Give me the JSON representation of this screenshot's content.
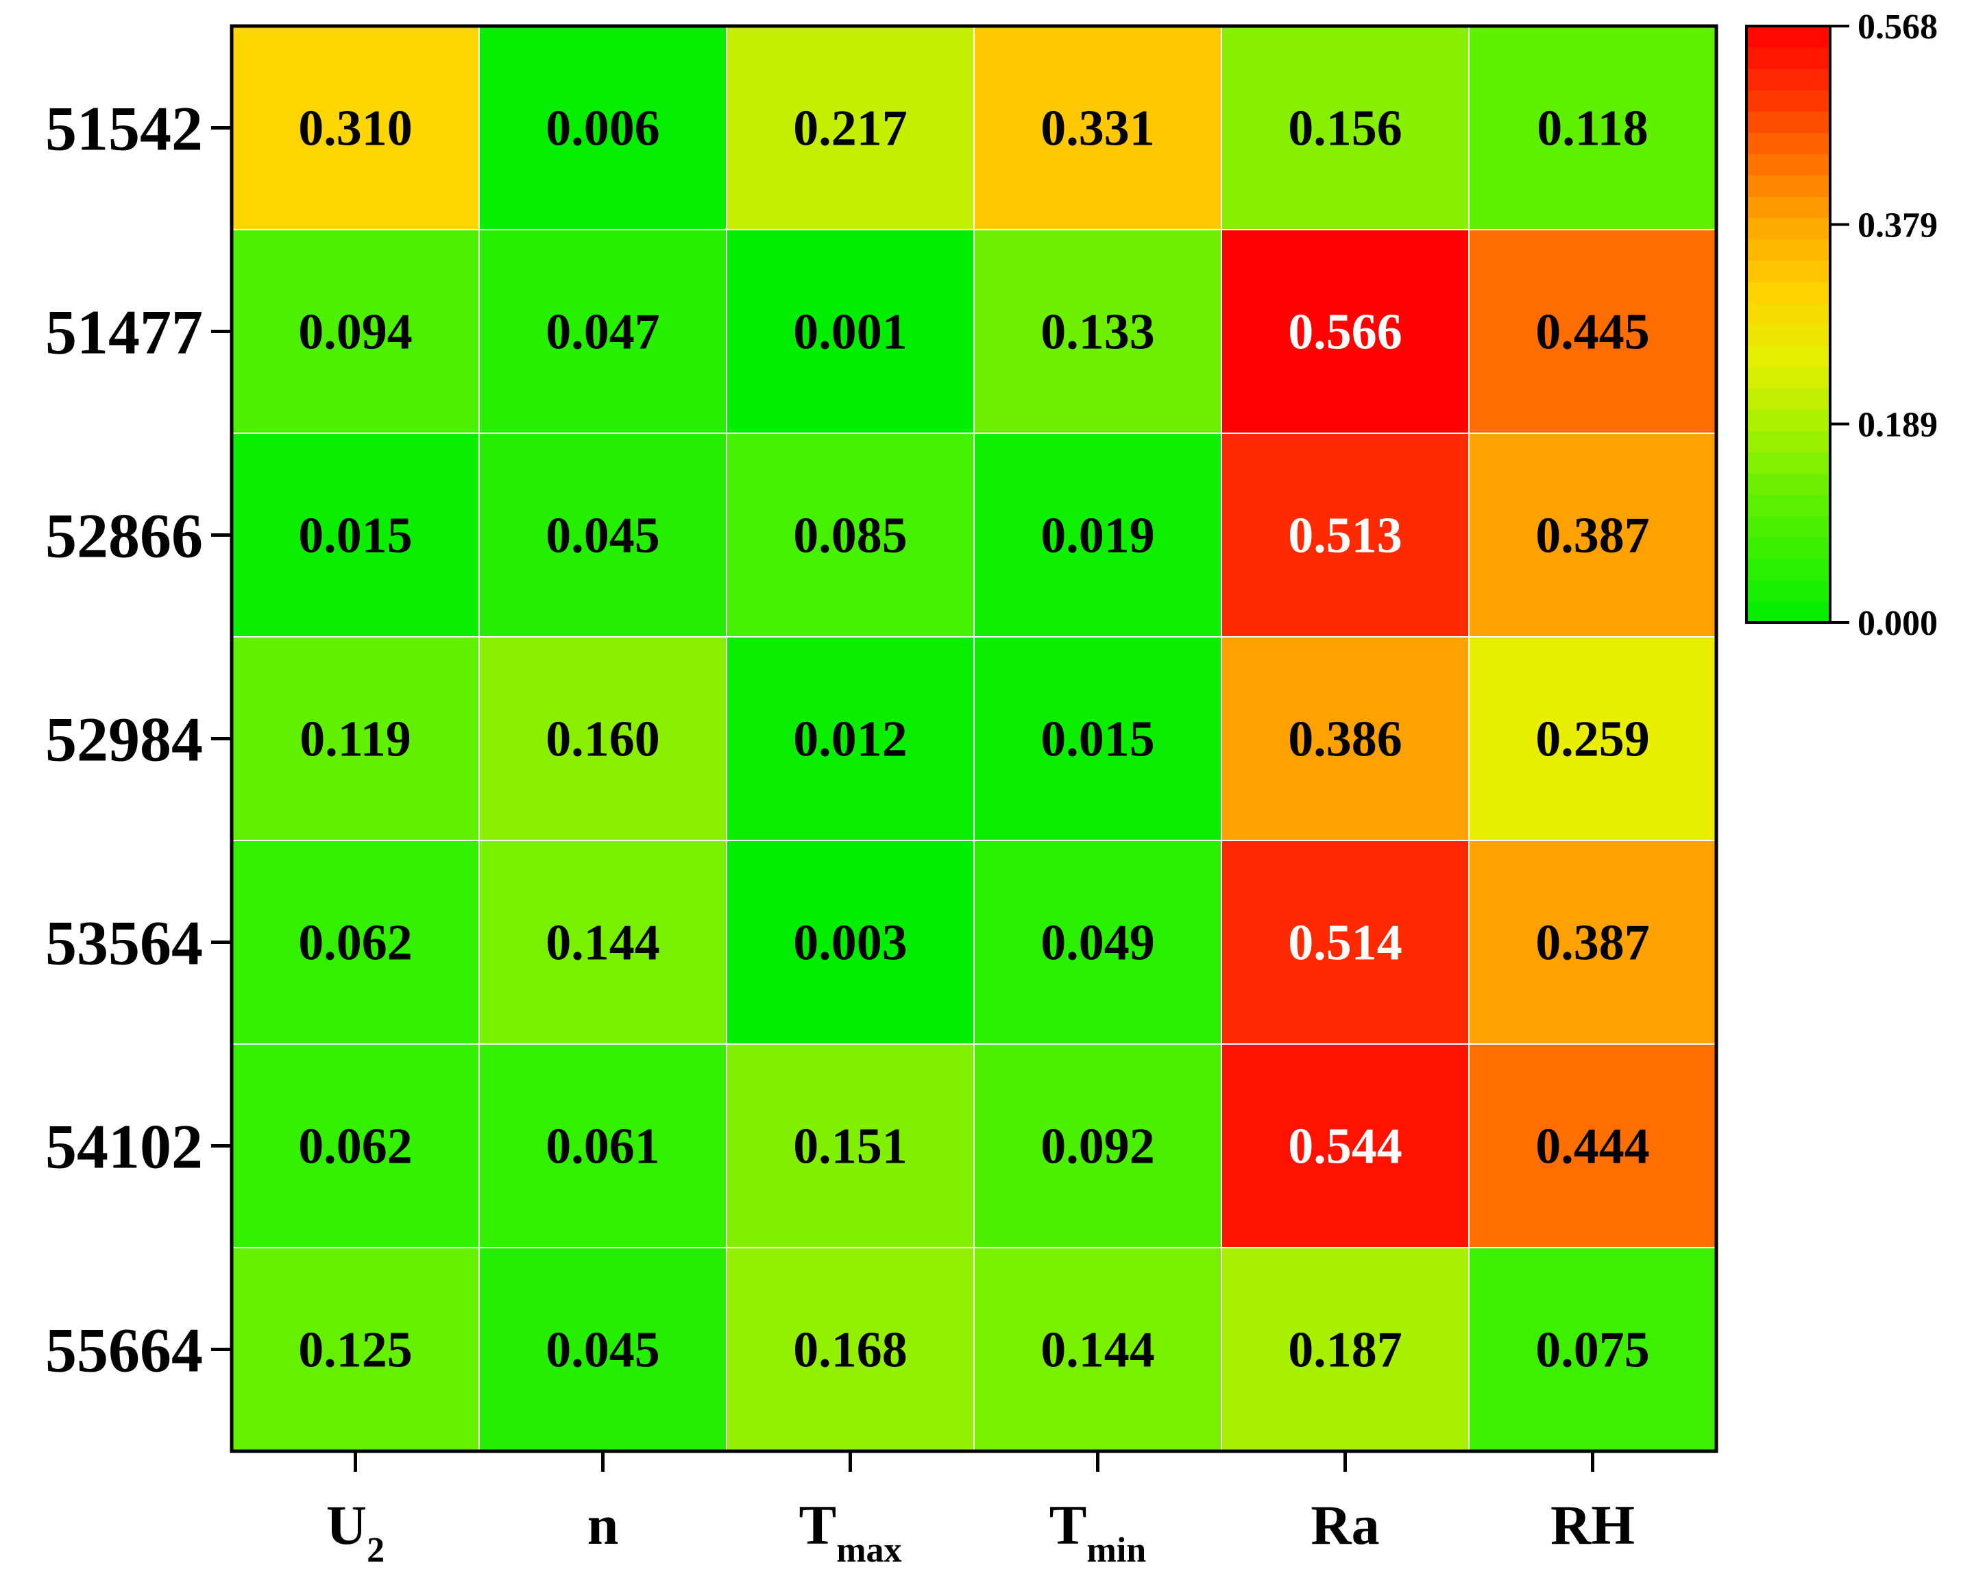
{
  "chart_data": {
    "type": "heatmap",
    "title": "",
    "xlabel": "",
    "ylabel": "",
    "columns": [
      {
        "main": "U",
        "sub": "2"
      },
      {
        "main": "n",
        "sub": ""
      },
      {
        "main": "T",
        "sub": "max"
      },
      {
        "main": "T",
        "sub": "min"
      },
      {
        "main": "Ra",
        "sub": ""
      },
      {
        "main": "RH",
        "sub": ""
      }
    ],
    "rows": [
      "51542",
      "51477",
      "52866",
      "52984",
      "53564",
      "54102",
      "55664"
    ],
    "values": [
      [
        0.31,
        0.006,
        0.217,
        0.331,
        0.156,
        0.118
      ],
      [
        0.094,
        0.047,
        0.001,
        0.133,
        0.566,
        0.445
      ],
      [
        0.015,
        0.045,
        0.085,
        0.019,
        0.513,
        0.387
      ],
      [
        0.119,
        0.16,
        0.012,
        0.015,
        0.386,
        0.259
      ],
      [
        0.062,
        0.144,
        0.003,
        0.049,
        0.514,
        0.387
      ],
      [
        0.062,
        0.061,
        0.151,
        0.092,
        0.544,
        0.444
      ],
      [
        0.125,
        0.045,
        0.168,
        0.144,
        0.187,
        0.075
      ]
    ],
    "labels": [
      [
        "0.310",
        "0.006",
        "0.217",
        "0.331",
        "0.156",
        "0.118"
      ],
      [
        "0.094",
        "0.047",
        "0.001",
        "0.133",
        "0.566",
        "0.445"
      ],
      [
        "0.015",
        "0.045",
        "0.085",
        "0.019",
        "0.513",
        "0.387"
      ],
      [
        "0.119",
        "0.160",
        "0.012",
        "0.015",
        "0.386",
        "0.259"
      ],
      [
        "0.062",
        "0.144",
        "0.003",
        "0.049",
        "0.514",
        "0.387"
      ],
      [
        "0.062",
        "0.061",
        "0.151",
        "0.092",
        "0.544",
        "0.444"
      ],
      [
        "0.125",
        "0.045",
        "0.168",
        "0.144",
        "0.187",
        "0.075"
      ]
    ],
    "colorbar": {
      "min": 0.0,
      "max": 0.568,
      "ticks": [
        {
          "value": 0.0,
          "label": "0.000"
        },
        {
          "value": 0.189,
          "label": "0.189"
        },
        {
          "value": 0.379,
          "label": "0.379"
        },
        {
          "value": 0.568,
          "label": "0.568"
        }
      ],
      "colormap": [
        "#00ee00",
        "#33f000",
        "#66f000",
        "#aaf000",
        "#e6f000",
        "#ffd200",
        "#ffa800",
        "#ff7000",
        "#ff3000",
        "#ff0000"
      ],
      "placement": "right"
    },
    "light_text_threshold": 0.5,
    "text_color_dark": "#000000",
    "text_color_light": "#ffffff",
    "grid_color": "#ffffff",
    "frame_color": "#000000"
  }
}
